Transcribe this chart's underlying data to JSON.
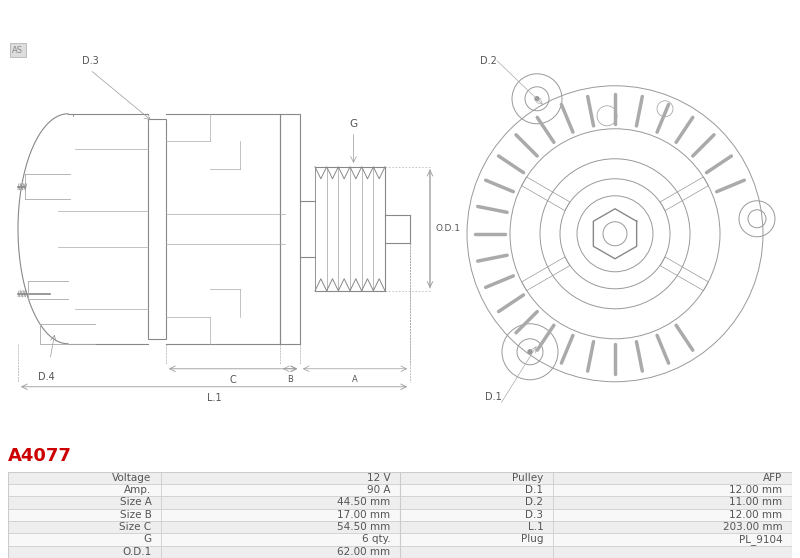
{
  "title": "A4077",
  "title_color": "#cc0000",
  "bg_color": "#ffffff",
  "watermark": "AS",
  "table_rows": [
    [
      "Voltage",
      "12 V",
      "Pulley",
      "AFP"
    ],
    [
      "Amp.",
      "90 A",
      "D.1",
      "12.00 mm"
    ],
    [
      "Size A",
      "44.50 mm",
      "D.2",
      "11.00 mm"
    ],
    [
      "Size B",
      "17.00 mm",
      "D.3",
      "12.00 mm"
    ],
    [
      "Size C",
      "54.50 mm",
      "L.1",
      "203.00 mm"
    ],
    [
      "G",
      "6 qty.",
      "Plug",
      "PL_9104"
    ],
    [
      "O.D.1",
      "62.00 mm",
      "",
      ""
    ]
  ],
  "line_color": "#aaaaaa",
  "dark_line": "#888888",
  "text_color": "#555555"
}
